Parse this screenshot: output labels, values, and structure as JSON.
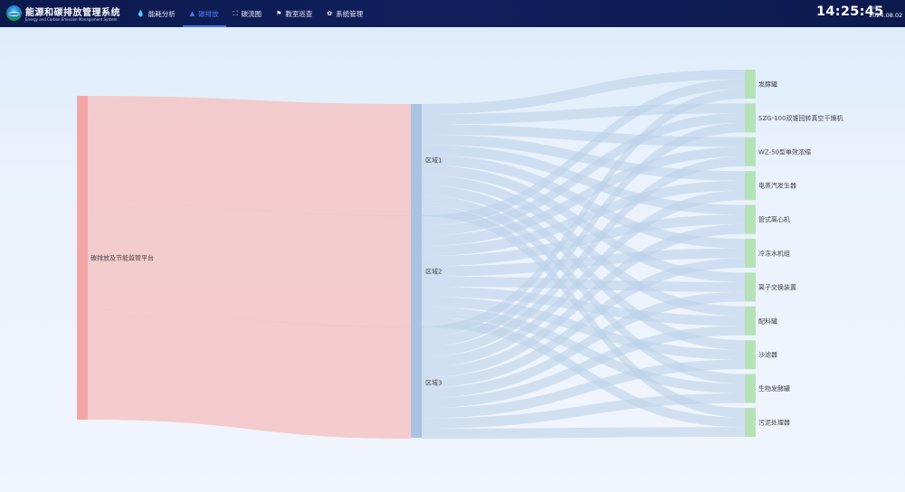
{
  "header": {
    "title": "能源和碳排放管理系统",
    "subtitle": "Energy and Carbon Emission Management System",
    "time": "14:25:45",
    "date_label": "Date",
    "date": "2024.08.02"
  },
  "nav": [
    {
      "label": "能耗分析",
      "icon": "water-drop-icon",
      "glyph": "💧",
      "active": false
    },
    {
      "label": "碳排放",
      "icon": "bar-chart-icon",
      "glyph": "▲",
      "active": true
    },
    {
      "label": "碳流图",
      "icon": "flow-chart-icon",
      "glyph": "⛶",
      "active": false
    },
    {
      "label": "教室巡查",
      "icon": "flag-icon",
      "glyph": "⚑",
      "active": false
    },
    {
      "label": "系统管理",
      "icon": "gear-icon",
      "glyph": "✿",
      "active": false
    }
  ],
  "colors": {
    "source": "#f3a6a6",
    "source_link": "#f4c4c4",
    "region": "#a9c3e2",
    "region_link": "#bcd2ea",
    "device": "#b6e2b8"
  },
  "sankey": {
    "source": {
      "label": "碳排放及节能监管平台"
    },
    "regions": [
      {
        "label": "区域1"
      },
      {
        "label": "区域2"
      },
      {
        "label": "区域3"
      }
    ],
    "devices": [
      {
        "label": "发酵罐"
      },
      {
        "label": "SZG-100双锥回转真空干燥机"
      },
      {
        "label": "WZ-50型单效浓缩"
      },
      {
        "label": "电蒸汽发生器"
      },
      {
        "label": "管式离心机"
      },
      {
        "label": "冷冻水机组"
      },
      {
        "label": "离子交换装置"
      },
      {
        "label": "配料罐"
      },
      {
        "label": "沙滤器"
      },
      {
        "label": "生物发酵罐"
      },
      {
        "label": "污泥处理器"
      }
    ]
  }
}
